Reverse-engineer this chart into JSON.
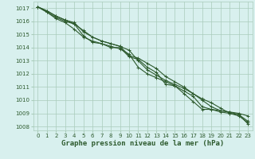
{
  "title": "Graphe pression niveau de la mer (hPa)",
  "bg_color": "#d8f0ee",
  "plot_bg_color": "#d8f0ee",
  "grid_color": "#aaccbb",
  "line_color": "#2d5a2d",
  "xlim_min": -0.5,
  "xlim_max": 23.5,
  "ylim_min": 1007.7,
  "ylim_max": 1017.5,
  "yticks": [
    1008,
    1009,
    1010,
    1011,
    1012,
    1013,
    1014,
    1015,
    1016,
    1017
  ],
  "xticks": [
    0,
    1,
    2,
    3,
    4,
    5,
    6,
    7,
    8,
    9,
    10,
    11,
    12,
    13,
    14,
    15,
    16,
    17,
    18,
    19,
    20,
    21,
    22,
    23
  ],
  "series": [
    [
      1017.1,
      1016.7,
      1016.3,
      1016.0,
      1015.8,
      1014.9,
      1014.4,
      1014.3,
      1014.0,
      1014.0,
      1013.3,
      1013.1,
      1012.5,
      1012.1,
      1011.2,
      1011.1,
      1010.5,
      1009.9,
      1009.3,
      1009.3,
      1009.2,
      1009.1,
      1008.9,
      1008.2
    ],
    [
      1017.1,
      1016.7,
      1016.2,
      1015.9,
      1015.4,
      1014.8,
      1014.5,
      1014.3,
      1014.1,
      1013.9,
      1013.5,
      1012.5,
      1012.0,
      1011.7,
      1011.4,
      1011.1,
      1010.7,
      1010.3,
      1009.5,
      1009.3,
      1009.1,
      1009.0,
      1008.9,
      1008.4
    ],
    [
      1017.1,
      1016.8,
      1016.4,
      1016.1,
      1015.8,
      1015.3,
      1014.8,
      1014.5,
      1014.3,
      1014.1,
      1013.8,
      1013.0,
      1012.3,
      1011.9,
      1011.5,
      1011.2,
      1010.9,
      1010.5,
      1010.0,
      1009.5,
      1009.2,
      1009.1,
      1009.0,
      1008.8
    ],
    [
      1017.1,
      1016.8,
      1016.4,
      1016.1,
      1015.9,
      1015.2,
      1014.8,
      1014.5,
      1014.3,
      1014.1,
      1013.4,
      1013.2,
      1012.8,
      1012.4,
      1011.8,
      1011.4,
      1011.0,
      1010.5,
      1010.1,
      1009.8,
      1009.4,
      1009.0,
      1008.8,
      1008.3
    ]
  ],
  "marker": "+",
  "markersize": 3.5,
  "linewidth": 0.8,
  "label_fontsize": 5.5,
  "tick_fontsize": 5,
  "xlabel_fontsize": 6.5
}
